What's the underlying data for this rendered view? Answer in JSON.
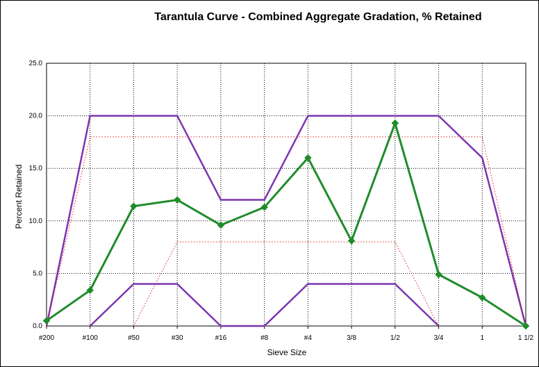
{
  "chart_data": {
    "type": "line",
    "title": "Tarantula Curve - Combined Aggregate Gradation, % Retained",
    "xlabel": "Sieve Size",
    "ylabel": "Percent Retained",
    "categories": [
      "#200",
      "#100",
      "#50",
      "#30",
      "#16",
      "#8",
      "#4",
      "3/8",
      "1/2",
      "3/4",
      "1",
      "1 1/2"
    ],
    "y_ticks": [
      "0.0",
      "5.0",
      "10.0",
      "15.0",
      "20.0",
      "25.0"
    ],
    "ylim": [
      0,
      25
    ],
    "grid": true,
    "series": [
      {
        "role": "upper-limit",
        "color": "#7b35b0",
        "style": "solid",
        "values": [
          0,
          20,
          20,
          20,
          12,
          12,
          20,
          20,
          20,
          20,
          16,
          0
        ]
      },
      {
        "role": "lower-limit",
        "color": "#7b35b0",
        "style": "solid",
        "values": [
          null,
          0,
          4,
          4,
          0,
          0,
          4,
          4,
          4,
          0,
          null,
          null
        ]
      },
      {
        "role": "upper-recommended",
        "color": "#e02020",
        "style": "dotted",
        "values": [
          0,
          18,
          18,
          18,
          18,
          18,
          18,
          18,
          18,
          18,
          18,
          0
        ]
      },
      {
        "role": "lower-recommended",
        "color": "#e02020",
        "style": "dotted",
        "values": [
          null,
          null,
          0,
          8,
          8,
          8,
          8,
          8,
          8,
          0,
          null,
          null
        ]
      },
      {
        "role": "combined-gradation",
        "color": "#1e8c2a",
        "style": "solid-markers",
        "values": [
          0.5,
          3.4,
          11.4,
          12.0,
          9.6,
          11.3,
          16.0,
          8.1,
          19.3,
          4.9,
          2.7,
          0.0
        ]
      }
    ]
  }
}
